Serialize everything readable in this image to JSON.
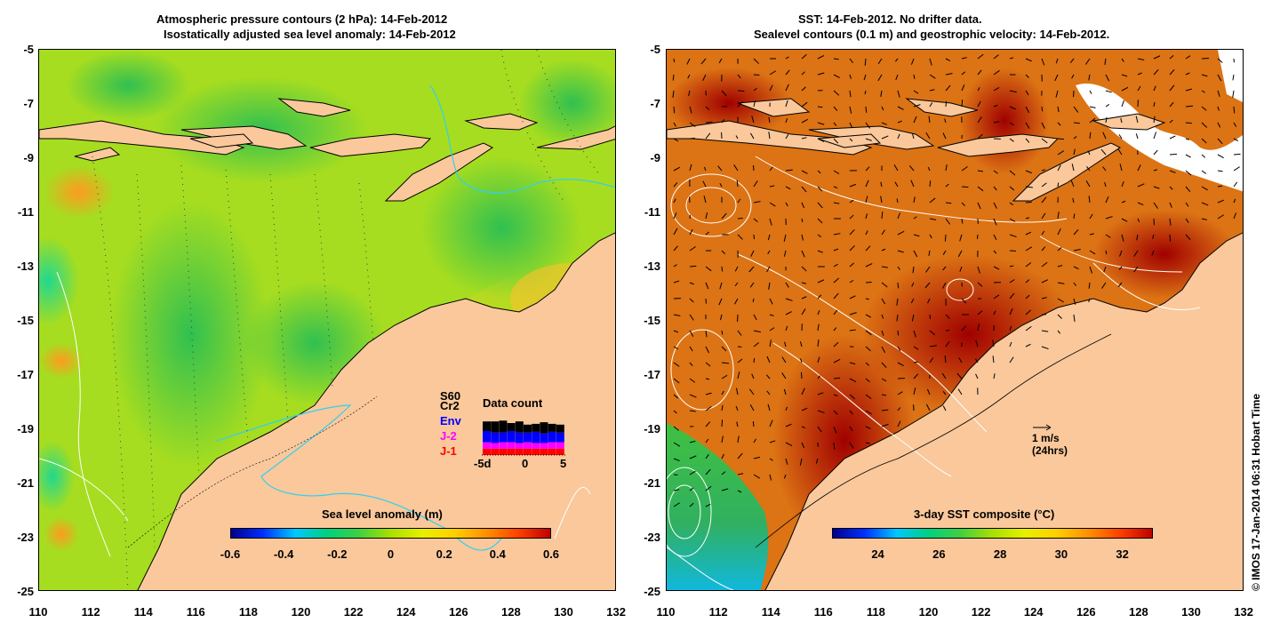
{
  "left_panel": {
    "title_line1": "Atmospheric pressure contours (2 hPa): 14-Feb-2012",
    "title_line2": "Isostatically adjusted sea level anomaly: 14-Feb-2012",
    "colorbar": {
      "title": "Sea level anomaly (m)",
      "ticks": [
        "-0.6",
        "-0.4",
        "-0.2",
        "0",
        "0.2",
        "0.4",
        "0.6"
      ],
      "range": [
        -0.6,
        0.6
      ]
    },
    "data_count": {
      "title": "Data count",
      "missions": [
        "S60",
        "Cr2",
        "Env",
        "J-2",
        "J-1"
      ],
      "mission_colors": [
        "#000000",
        "#000000",
        "#0000ff",
        "#ff00ff",
        "#ff0000"
      ],
      "x_labels": [
        "-5d",
        "0",
        "5"
      ]
    }
  },
  "right_panel": {
    "title_line1": "SST: 14-Feb-2012. No drifter data.",
    "title_line2": "Sealevel contours (0.1 m) and geostrophic velocity: 14-Feb-2012.",
    "colorbar": {
      "title": "3-day SST composite (°C)",
      "ticks": [
        "24",
        "26",
        "28",
        "30",
        "32"
      ],
      "range": [
        22.5,
        33
      ]
    },
    "velocity_scale": {
      "label": "1 m/s",
      "sublabel": "(24hrs)"
    }
  },
  "axes": {
    "lat_ticks": [
      "-5",
      "-7",
      "-9",
      "-11",
      "-13",
      "-15",
      "-17",
      "-19",
      "-21",
      "-23",
      "-25"
    ],
    "lon_ticks": [
      "110",
      "112",
      "114",
      "116",
      "118",
      "120",
      "122",
      "124",
      "126",
      "128",
      "130",
      "132"
    ]
  },
  "copyright": "© IMOS 17-Jan-2014 06:31 Hobart Time",
  "colors": {
    "land": "#fac89b",
    "sla_bar": [
      "#00008f",
      "#0030ff",
      "#00c8ff",
      "#00d080",
      "#40d040",
      "#a8e000",
      "#e8f000",
      "#ffd000",
      "#ff9000",
      "#ff4000",
      "#c00000"
    ],
    "sst_bar": [
      "#00008f",
      "#0030ff",
      "#00c8ff",
      "#00d080",
      "#40d040",
      "#a8e000",
      "#e8f000",
      "#ffd000",
      "#ff9000",
      "#ff4000",
      "#c00000"
    ]
  }
}
